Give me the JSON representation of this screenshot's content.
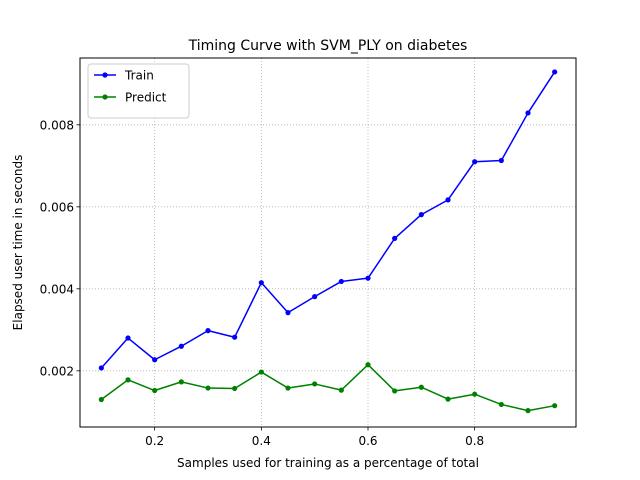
{
  "chart_data": {
    "type": "line",
    "title": "Timing Curve with SVM_PLY on diabetes",
    "xlabel": "Samples used for training as a percentage of total",
    "ylabel": "Elapsed user time in seconds",
    "xlim": [
      0.06,
      0.99
    ],
    "ylim": [
      0.00063,
      0.00963
    ],
    "xticks": [
      0.2,
      0.4,
      0.6,
      0.8
    ],
    "xtick_labels": [
      "0.2",
      "0.4",
      "0.6",
      "0.8"
    ],
    "yticks": [
      0.002,
      0.004,
      0.006,
      0.008
    ],
    "ytick_labels": [
      "0.002",
      "0.004",
      "0.006",
      "0.008"
    ],
    "grid": true,
    "legend_position": "upper-left",
    "x": [
      0.1,
      0.15,
      0.2,
      0.25,
      0.3,
      0.35,
      0.4,
      0.45,
      0.5,
      0.55,
      0.6,
      0.65,
      0.7,
      0.75,
      0.8,
      0.85,
      0.9,
      0.95
    ],
    "series": [
      {
        "name": "Train",
        "color": "#0000ff",
        "values": [
          0.00207,
          0.0028,
          0.00227,
          0.0026,
          0.00298,
          0.00282,
          0.00415,
          0.00342,
          0.00381,
          0.00418,
          0.00426,
          0.00523,
          0.00581,
          0.00617,
          0.0071,
          0.00713,
          0.00829,
          0.00929
        ]
      },
      {
        "name": "Predict",
        "color": "#008000",
        "values": [
          0.0013,
          0.00178,
          0.00152,
          0.00173,
          0.00158,
          0.00157,
          0.00197,
          0.00158,
          0.00168,
          0.00153,
          0.00215,
          0.00151,
          0.0016,
          0.00131,
          0.00143,
          0.00118,
          0.00103,
          0.00115
        ]
      }
    ]
  }
}
